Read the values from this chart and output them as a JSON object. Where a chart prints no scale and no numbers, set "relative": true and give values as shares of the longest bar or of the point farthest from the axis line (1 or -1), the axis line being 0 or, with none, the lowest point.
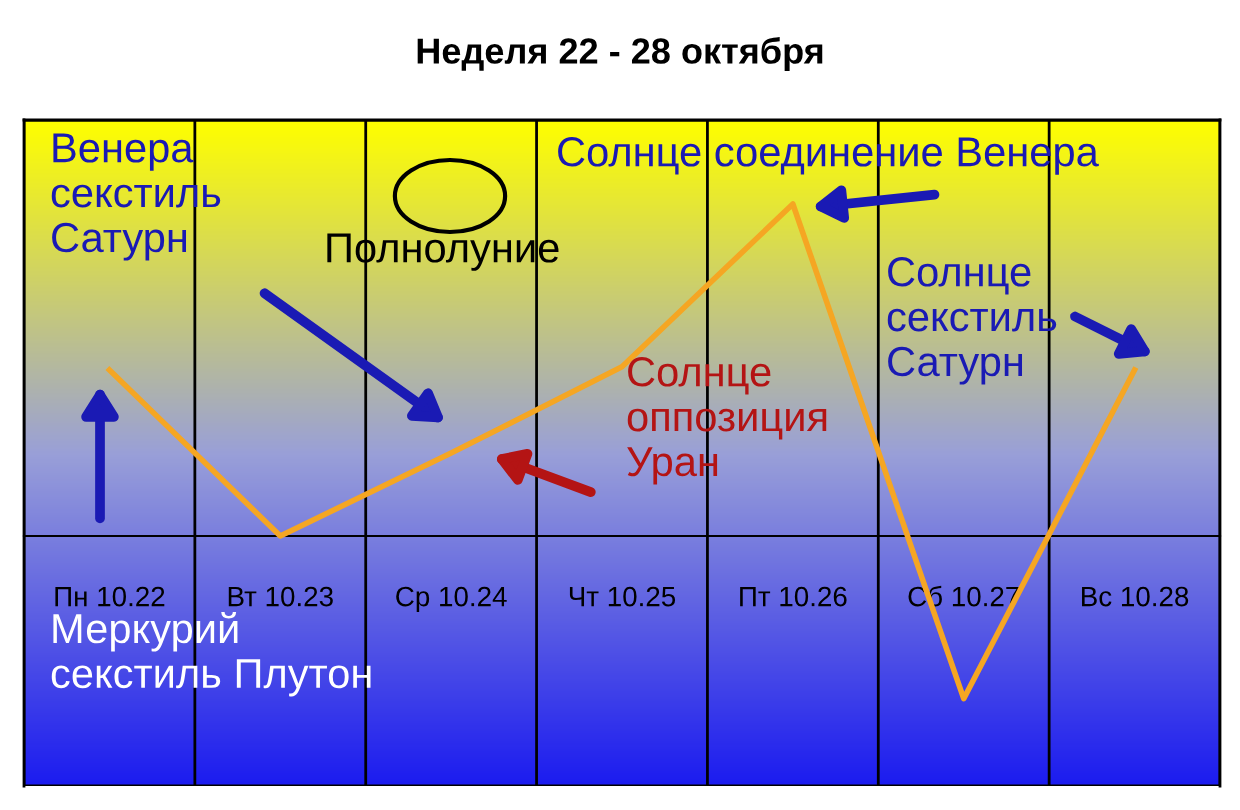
{
  "chart_data": {
    "type": "line",
    "title": "Неделя 22 - 28 октября",
    "relative": true,
    "grid": "x",
    "categories": [
      "Пн 10.22",
      "Вт 10.23",
      "Ср 10.24",
      "Чт 10.25",
      "Пт 10.26",
      "Сб 10.27",
      "Вс 10.28"
    ],
    "series": [
      {
        "color": "#f5a623",
        "values": [
          0.5,
          0,
          0.25,
          0.51,
          1,
          -0.49,
          0.5
        ]
      }
    ],
    "annotations": [
      "Венера\nсекстиль\nСатурн",
      "Полнолуние",
      "Солнце соединение Венера",
      "Солнце\nоппозиция\nУран",
      "Солнце\nсекстиль\nСатурн",
      "Меркурий\nсекстиль Плутон"
    ]
  }
}
